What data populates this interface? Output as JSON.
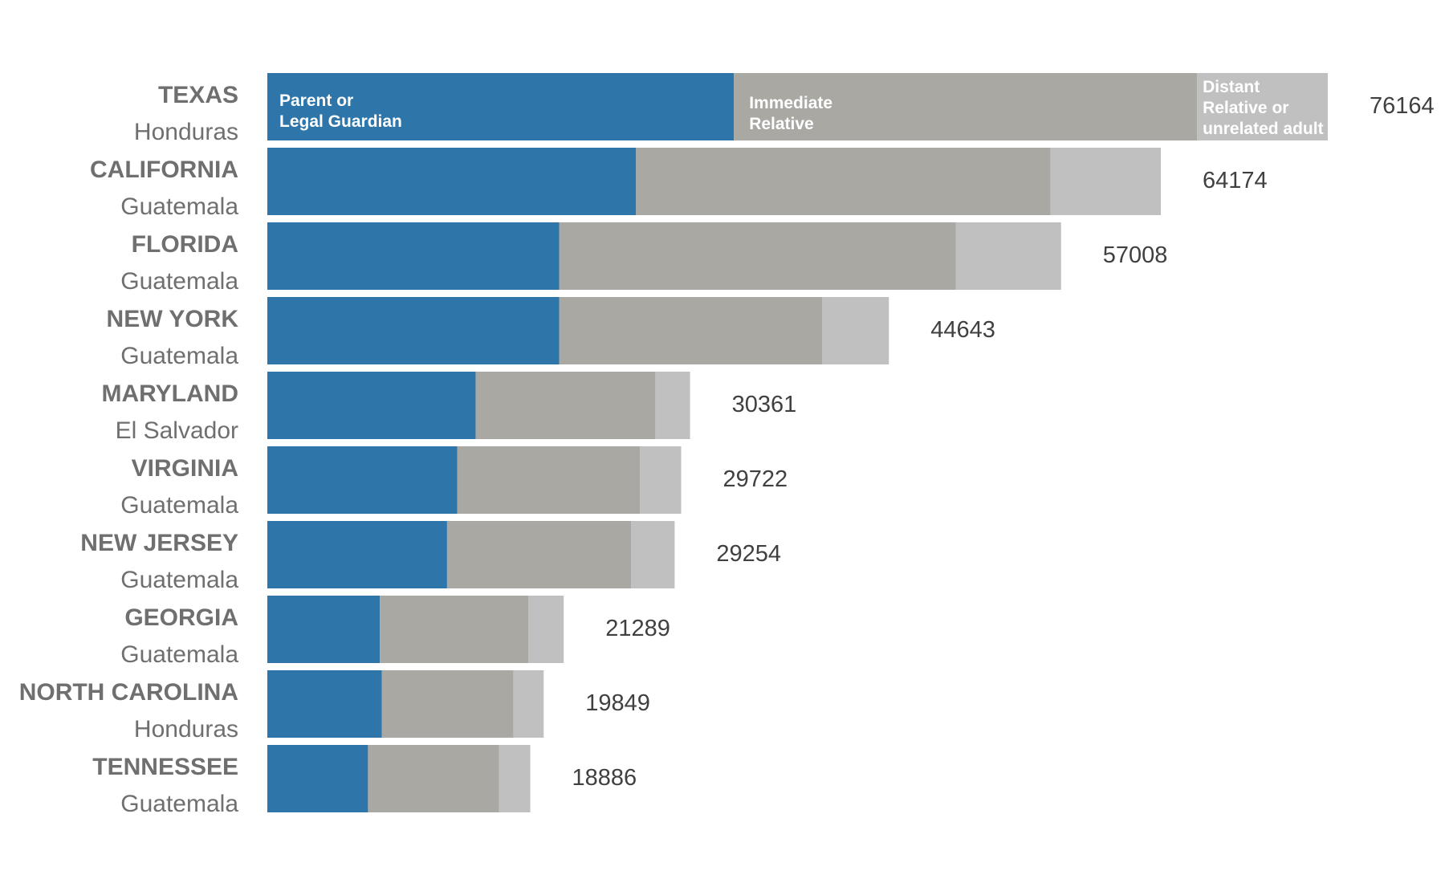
{
  "chart_data": {
    "type": "bar",
    "orientation": "horizontal",
    "stacked": true,
    "title": "",
    "xlabel": "",
    "ylabel": "",
    "xlim": [
      0,
      76164
    ],
    "grid": false,
    "series": [
      {
        "name": "Parent or Legal Guardian",
        "name_lines": [
          "Parent or",
          "Legal Guardian"
        ],
        "color": "#2e75aa"
      },
      {
        "name": "Immediate Relative",
        "name_lines": [
          "Immediate",
          "Relative"
        ],
        "color": "#a9a8a3"
      },
      {
        "name": "Distant Relative or unrelated adult",
        "name_lines": [
          "Distant",
          "Relative or",
          "unrelated adult"
        ],
        "color": "#c0c0c0"
      }
    ],
    "rows": [
      {
        "state": "TEXAS",
        "country": "Honduras",
        "total": "76164",
        "values": [
          33510,
          33260,
          9394
        ]
      },
      {
        "state": "CALIFORNIA",
        "country": "Guatemala",
        "total": "64174",
        "values": [
          26480,
          29760,
          7934
        ]
      },
      {
        "state": "FLORIDA",
        "country": "Guatemala",
        "total": "57008",
        "values": [
          20960,
          28480,
          7568
        ]
      },
      {
        "state": "NEW YORK",
        "country": "Guatemala",
        "total": "44643",
        "values": [
          20960,
          18880,
          4803
        ]
      },
      {
        "state": "MARYLAND",
        "country": "El Salvador",
        "total": "30361",
        "values": [
          14960,
          12910,
          2491
        ]
      },
      {
        "state": "VIRGINIA",
        "country": "Guatemala",
        "total": "29722",
        "values": [
          13640,
          13130,
          2952
        ]
      },
      {
        "state": "NEW JERSEY",
        "country": "Guatemala",
        "total": "29254",
        "values": [
          12910,
          13210,
          3134
        ]
      },
      {
        "state": "GEORGIA",
        "country": "Guatemala",
        "total": "21289",
        "values": [
          8080,
          10680,
          2529
        ]
      },
      {
        "state": "NORTH CAROLINA",
        "country": "Honduras",
        "total": "19849",
        "values": [
          8230,
          9450,
          2169
        ]
      },
      {
        "state": "TENNESSEE",
        "country": "Guatemala",
        "total": "18886",
        "values": [
          7230,
          9410,
          2246
        ]
      }
    ]
  }
}
